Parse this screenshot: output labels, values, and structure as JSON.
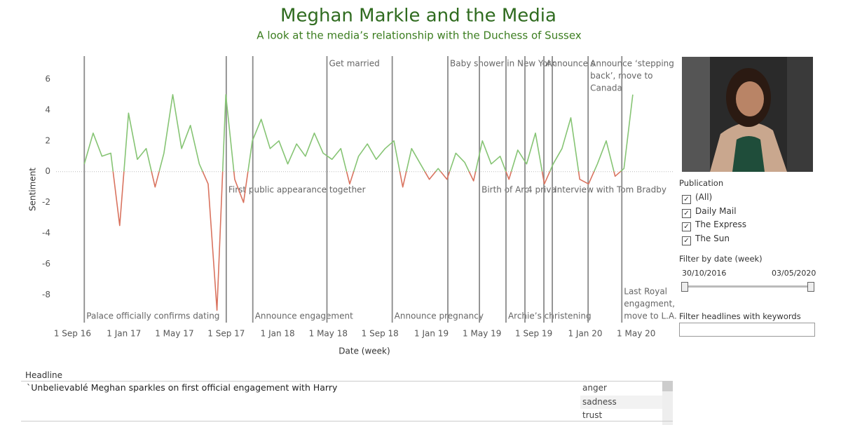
{
  "chart_data": {
    "type": "line",
    "title": "Meghan Markle and the Media",
    "subtitle": "A look at the media’s relationship with the Duchess of Sussex",
    "x_label": "Date (week)",
    "y_label": "Sentiment",
    "x": [
      "2016-09-29",
      "2016-10-20",
      "2016-11-10",
      "2016-12-01",
      "2016-12-22",
      "2017-01-12",
      "2017-02-02",
      "2017-02-23",
      "2017-03-16",
      "2017-04-06",
      "2017-04-27",
      "2017-05-18",
      "2017-06-08",
      "2017-06-29",
      "2017-07-20",
      "2017-08-10",
      "2017-08-31",
      "2017-09-21",
      "2017-10-12",
      "2017-11-02",
      "2017-11-23",
      "2017-12-14",
      "2018-01-04",
      "2018-01-25",
      "2018-02-15",
      "2018-03-08",
      "2018-03-29",
      "2018-04-19",
      "2018-05-10",
      "2018-05-31",
      "2018-06-21",
      "2018-07-12",
      "2018-08-02",
      "2018-08-23",
      "2018-09-13",
      "2018-10-04",
      "2018-10-25",
      "2018-11-15",
      "2018-12-06",
      "2018-12-27",
      "2019-01-17",
      "2019-02-07",
      "2019-02-28",
      "2019-03-21",
      "2019-04-11",
      "2019-05-02",
      "2019-05-23",
      "2019-06-13",
      "2019-07-04",
      "2019-07-25",
      "2019-08-15",
      "2019-09-05",
      "2019-09-26",
      "2019-10-17",
      "2019-11-07",
      "2019-11-28",
      "2019-12-19",
      "2020-01-09",
      "2020-01-30",
      "2020-02-20",
      "2020-03-12",
      "2020-04-02",
      "2020-04-23"
    ],
    "series": [
      {
        "name": "Sentiment",
        "color": "#86c474",
        "negative_color": "#d9735f",
        "values": [
          0.5,
          2.5,
          1.0,
          1.2,
          -3.5,
          3.8,
          0.8,
          1.5,
          -1.0,
          1.2,
          5.0,
          1.5,
          3.0,
          0.5,
          -0.8,
          -9.0,
          5.0,
          -0.5,
          -2.0,
          2.0,
          3.4,
          1.5,
          2.0,
          0.5,
          1.8,
          1.0,
          2.5,
          1.2,
          0.8,
          1.5,
          -0.8,
          1.0,
          1.8,
          0.8,
          1.5,
          2.0,
          -1.0,
          1.5,
          0.5,
          -0.5,
          0.2,
          -0.5,
          1.2,
          0.6,
          -0.6,
          2.0,
          0.5,
          1.0,
          -0.5,
          1.4,
          0.5,
          2.5,
          -0.8,
          0.5,
          1.5,
          3.5,
          -0.5,
          -0.8,
          0.5,
          2.0,
          -0.3,
          0.2,
          5.0
        ]
      }
    ],
    "events": [
      {
        "date": "2016-09-29",
        "position": "bottom",
        "lines": [
          "Palace officially confirms dating"
        ]
      },
      {
        "date": "2017-09-01",
        "position": "middle",
        "lines": [
          "First public appearance together"
        ]
      },
      {
        "date": "2017-11-03",
        "position": "bottom",
        "lines": [
          "Announce engagement"
        ]
      },
      {
        "date": "2018-04-28",
        "position": "top",
        "lines": [
          "Get married"
        ]
      },
      {
        "date": "2018-09-30",
        "position": "bottom",
        "lines": [
          "Announce pregnancy"
        ]
      },
      {
        "date": "2019-02-09",
        "position": "top",
        "lines": [
          "Baby shower in New York"
        ]
      },
      {
        "date": "2019-04-25",
        "position": "middle",
        "lines": [
          "Birth of Arc"
        ]
      },
      {
        "date": "2019-06-27",
        "position": "bottom",
        "lines": [
          "Archie’s christening"
        ]
      },
      {
        "date": "2019-08-11",
        "position": "middle",
        "lines": [
          "4 priva"
        ]
      },
      {
        "date": "2019-09-25",
        "position": "top",
        "lines": [
          "Announce s"
        ]
      },
      {
        "date": "2019-10-15",
        "position": "middle",
        "lines": [
          "Interview with Tom Bradby"
        ]
      },
      {
        "date": "2020-01-08",
        "position": "top",
        "lines": [
          "Announce ‘stepping",
          "back’, move to",
          "Canada"
        ]
      },
      {
        "date": "2020-03-28",
        "position": "bottom",
        "lines": [
          "Last Royal",
          "engagment,",
          "move to L.A."
        ]
      }
    ],
    "xlim": [
      "2016-07-24",
      "2020-07-27"
    ],
    "xticks": [
      {
        "value": "2016-09-01",
        "label": "1 Sep 16"
      },
      {
        "value": "2017-01-01",
        "label": "1 Jan 17"
      },
      {
        "value": "2017-05-01",
        "label": "1 May 17"
      },
      {
        "value": "2017-09-01",
        "label": "1 Sep 17"
      },
      {
        "value": "2018-01-01",
        "label": "1 Jan 18"
      },
      {
        "value": "2018-05-01",
        "label": "1 May 18"
      },
      {
        "value": "2018-09-01",
        "label": "1 Sep 18"
      },
      {
        "value": "2019-01-01",
        "label": "1 Jan 19"
      },
      {
        "value": "2019-05-01",
        "label": "1 May 19"
      },
      {
        "value": "2019-09-01",
        "label": "1 Sep 19"
      },
      {
        "value": "2020-01-01",
        "label": "1 Jan 20"
      },
      {
        "value": "2020-05-01",
        "label": "1 May 20"
      }
    ],
    "ylim": [
      -9.8,
      7.5
    ],
    "yticks": [
      -8,
      -6,
      -4,
      -2,
      0,
      2,
      4,
      6
    ]
  },
  "sidebar": {
    "publication_title": "Publication",
    "publications": [
      "(All)",
      "Daily Mail",
      "The Express",
      "The Sun"
    ],
    "date_filter_title": "Filter by date (week)",
    "date_from": "30/10/2016",
    "date_to": "03/05/2020",
    "keyword_filter_title": "Filter headlines with keywords"
  },
  "headline_table": {
    "header": "Headline",
    "headline": "`Unbelievablé Meghan sparkles on first official engagement with Harry",
    "emotions": [
      "anger",
      "sadness",
      "trust"
    ]
  }
}
